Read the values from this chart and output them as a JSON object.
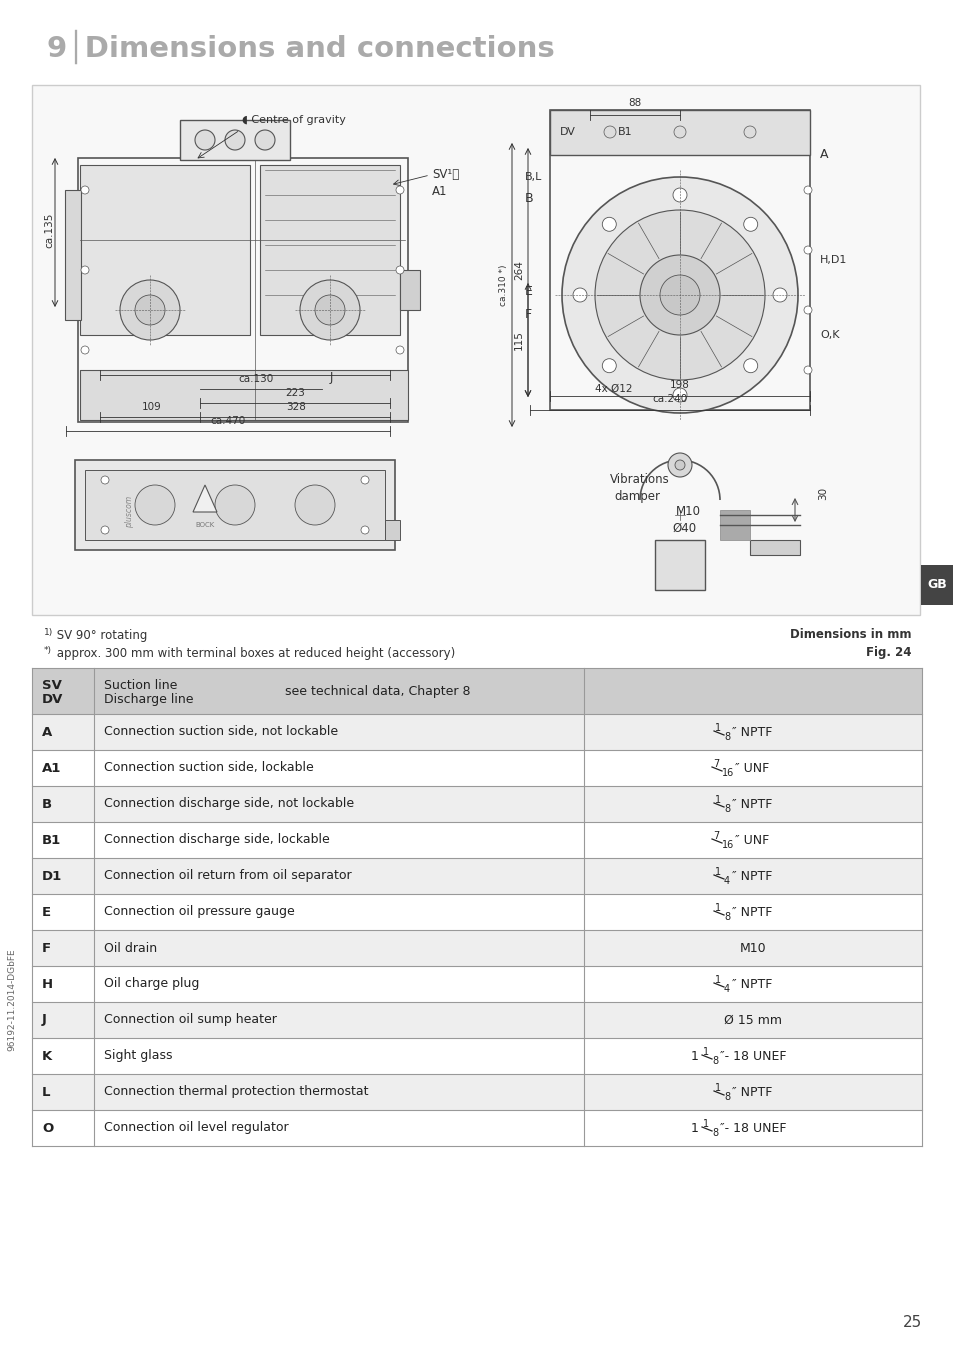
{
  "title": "9│Dimensions and connections",
  "title_color": "#aaaaaa",
  "title_fontsize": 21,
  "bg_color": "#ffffff",
  "page_number": "25",
  "sidebar_label": "GB",
  "sidebar_bg": "#444444",
  "sidebar_text_color": "#ffffff",
  "vertical_label": "96192-11.2014-DGbFE",
  "note1_super": "1)",
  "note1_text": " SV 90° rotating",
  "note2_super": "*)",
  "note2_text": " approx. 300 mm with terminal boxes at reduced height (accessory)",
  "note3": "Dimensions in mm",
  "note4": "Fig. 24",
  "diagram_box_color": "#cccccc",
  "diagram_bg": "#f8f8f8",
  "draw_color": "#444444",
  "dim_color": "#333333",
  "table_header_bg": "#cccccc",
  "table_alt_bg": "#eeeeee",
  "table_white_bg": "#ffffff",
  "table_border_color": "#999999",
  "table_text_color": "#222222",
  "table_rows": [
    {
      "key": "SV\nDV",
      "desc1": "Suction line",
      "desc2": "Discharge line",
      "note": "see technical data, Chapter 8",
      "value": "",
      "header": true
    },
    {
      "key": "A",
      "desc1": "Connection suction side, not lockable",
      "desc2": "",
      "note": "",
      "value": "1/8″ NPTF",
      "header": false
    },
    {
      "key": "A1",
      "desc1": "Connection suction side, lockable",
      "desc2": "",
      "note": "",
      "value": "7/16″ UNF",
      "header": false
    },
    {
      "key": "B",
      "desc1": "Connection discharge side, not lockable",
      "desc2": "",
      "note": "",
      "value": "1/8″ NPTF",
      "header": false
    },
    {
      "key": "B1",
      "desc1": "Connection discharge side, lockable",
      "desc2": "",
      "note": "",
      "value": "7/16″ UNF",
      "header": false
    },
    {
      "key": "D1",
      "desc1": "Connection oil return from oil separator",
      "desc2": "",
      "note": "",
      "value": "1/4″ NPTF",
      "header": false
    },
    {
      "key": "E",
      "desc1": "Connection oil pressure gauge",
      "desc2": "",
      "note": "",
      "value": "1/8″ NPTF",
      "header": false
    },
    {
      "key": "F",
      "desc1": "Oil drain",
      "desc2": "",
      "note": "",
      "value": "M10",
      "header": false
    },
    {
      "key": "H",
      "desc1": "Oil charge plug",
      "desc2": "",
      "note": "",
      "value": "1/4″ NPTF",
      "header": false
    },
    {
      "key": "J",
      "desc1": "Connection oil sump heater",
      "desc2": "",
      "note": "",
      "value": "Ø 15 mm",
      "header": false
    },
    {
      "key": "K",
      "desc1": "Sight glass",
      "desc2": "",
      "note": "",
      "value": "1 1/8″- 18 UNEF",
      "header": false
    },
    {
      "key": "L",
      "desc1": "Connection thermal protection thermostat",
      "desc2": "",
      "note": "",
      "value": "1/8″ NPTF",
      "header": false
    },
    {
      "key": "O",
      "desc1": "Connection oil level regulator",
      "desc2": "",
      "note": "",
      "value": "1 1/8″- 18 UNEF",
      "header": false
    }
  ]
}
